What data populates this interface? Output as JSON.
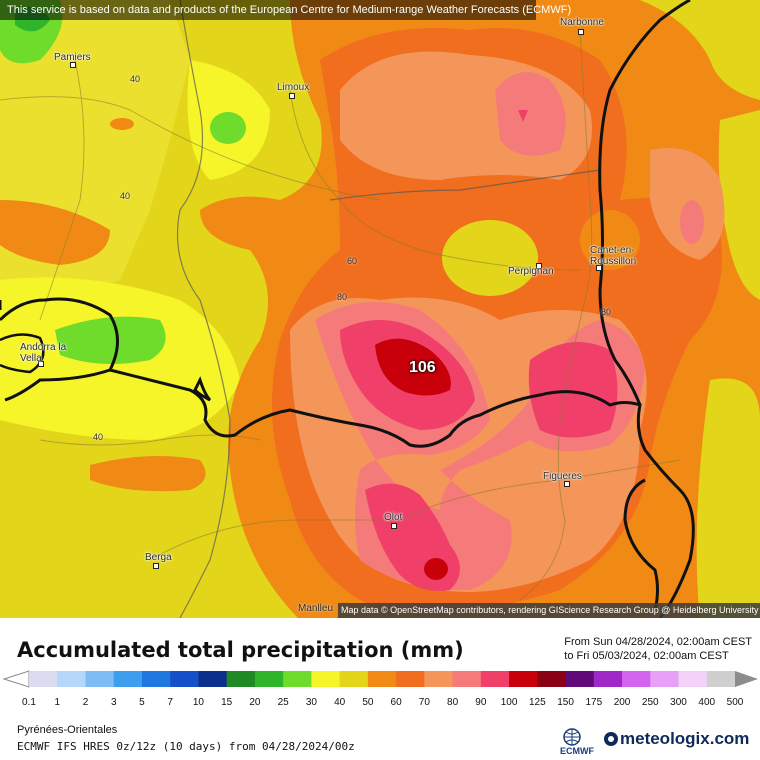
{
  "banner": "This service is based on data and products of the European Centre for Medium-range Weather Forecasts (ECMWF)",
  "attribution": "Map data © OpenStreetMap contributors, rendering GIScience Research Group @ Heidelberg University",
  "cities": {
    "narbonne": "Narbonne",
    "pamiers": "Pamiers",
    "limoux": "Limoux",
    "canet": "Canet-en-Roussillon",
    "perpignan": "Perpignan",
    "andorra": "Andorra la Vella",
    "figueres": "Figueres",
    "olot": "Olot",
    "berga": "Berga",
    "manlleu": "Manlleu"
  },
  "contours": {
    "c1": "40",
    "c2": "40",
    "c3": "60",
    "c4": "80",
    "c5": "80",
    "c6": "40"
  },
  "max_value": "106",
  "title": "Accumulated total precipitation (mm)",
  "from_text": "From Sun 04/28/2024, 02:00am CEST",
  "to_text": "to Fri 05/03/2024, 02:00am CEST",
  "legend": {
    "ticks": [
      "0.1",
      "1",
      "2",
      "3",
      "5",
      "7",
      "10",
      "15",
      "20",
      "25",
      "30",
      "40",
      "50",
      "60",
      "70",
      "80",
      "90",
      "100",
      "125",
      "150",
      "175",
      "200",
      "250",
      "300",
      "400",
      "500"
    ],
    "colors": [
      "#dcdcf0",
      "#b5d8fa",
      "#7dbcf5",
      "#3d9ef0",
      "#1f78e0",
      "#1550c8",
      "#0c2f8c",
      "#1f8a24",
      "#2fb52b",
      "#6fdc2c",
      "#f5f52a",
      "#e3d61a",
      "#f08a14",
      "#f06e1e",
      "#f4955a",
      "#f57b7b",
      "#f0406a",
      "#c8000a",
      "#8c0014",
      "#5f0a78",
      "#a028c8",
      "#d264f0",
      "#e6a0f5",
      "#f3d2fa",
      "#cfcfcf"
    ]
  },
  "region": "Pyrénées-Orientales",
  "model": "ECMWF IFS HRES 0z/12z (10 days) from 04/28/2024/00z",
  "ecmwf_logo": "ECMWF",
  "brand": "meteologix.com"
}
